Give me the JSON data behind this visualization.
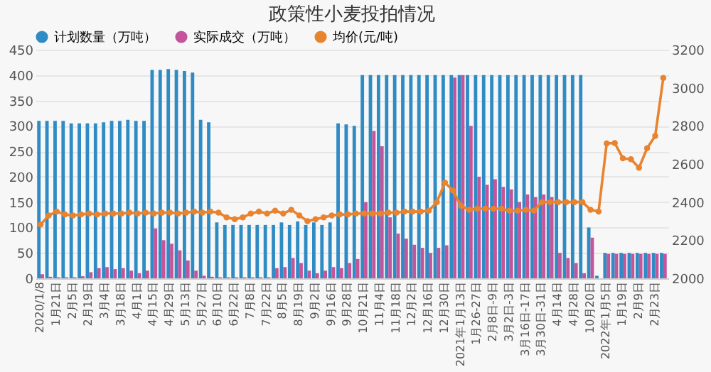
{
  "chart_data": {
    "type": "bar",
    "title": "政策性小麦投拍情况",
    "categories": [
      "2020/1/8",
      null,
      "1月21日",
      null,
      "2月5日",
      null,
      "2月19日",
      null,
      "3月4日",
      null,
      "3月18日",
      null,
      "4月1日",
      null,
      "4月15日",
      null,
      "4月29日",
      null,
      "5月13日",
      null,
      "5月27日",
      null,
      "6月10日",
      null,
      "6月22日",
      null,
      "7月8日",
      null,
      "7月22日",
      null,
      "8月5日",
      null,
      "8月19日",
      null,
      "9月2日",
      null,
      "9月16日",
      null,
      "9月28日",
      null,
      "10月21日",
      null,
      "11月4日",
      null,
      "11月18日",
      null,
      "12月2日",
      null,
      "12月16日",
      null,
      "12月30日",
      null,
      "2021年1月13日",
      null,
      "1月26-27日",
      null,
      "2月8日-9日",
      null,
      "3月2日-3日",
      null,
      "3月16日-17日",
      null,
      "3月30日-31日",
      null,
      "4月14日",
      null,
      "4月28日",
      null,
      "10月20日",
      null,
      "2022年1月5日",
      null,
      "1月19日",
      null,
      "2月9日",
      null,
      "2月23日",
      null
    ],
    "series": [
      {
        "name": "计划数量（万吨）",
        "color": "#2f8bc4",
        "values": [
          310,
          310,
          310,
          310,
          305,
          305,
          305,
          305,
          307,
          310,
          310,
          312,
          310,
          310,
          410,
          410,
          412,
          410,
          408,
          405,
          312,
          307,
          110,
          105,
          105,
          105,
          105,
          105,
          105,
          105,
          110,
          105,
          112,
          105,
          110,
          105,
          110,
          305,
          303,
          300,
          400,
          400,
          400,
          400,
          400,
          400,
          400,
          400,
          400,
          400,
          400,
          400,
          400,
          400,
          400,
          400,
          400,
          400,
          400,
          400,
          400,
          400,
          400,
          400,
          400,
          400,
          400,
          400,
          100,
          5,
          50,
          50,
          50,
          50,
          50,
          50,
          50,
          50
        ]
      },
      {
        "name": "实际成交（万吨）",
        "color": "#c2559b",
        "values": [
          8,
          3,
          2,
          2,
          2,
          4,
          12,
          20,
          22,
          18,
          20,
          15,
          10,
          15,
          98,
          75,
          68,
          55,
          35,
          15,
          5,
          3,
          2,
          2,
          2,
          2,
          2,
          2,
          2,
          20,
          22,
          40,
          30,
          15,
          10,
          15,
          22,
          20,
          30,
          38,
          150,
          290,
          260,
          120,
          88,
          78,
          66,
          60,
          50,
          60,
          65,
          395,
          400,
          300,
          200,
          184,
          195,
          180,
          175,
          150,
          165,
          160,
          165,
          160,
          50,
          40,
          30,
          10,
          80,
          0,
          48,
          48,
          48,
          48,
          48,
          48,
          48,
          48
        ]
      },
      {
        "name": "均价(元/吨)",
        "type": "line",
        "axis": "y2",
        "color": "#e8832f",
        "values": [
          2282,
          2330,
          2350,
          2335,
          2330,
          2335,
          2340,
          2335,
          2340,
          2340,
          2340,
          2345,
          2340,
          2345,
          2340,
          2345,
          2345,
          2340,
          2345,
          2350,
          2345,
          2350,
          2345,
          2320,
          2310,
          2320,
          2340,
          2350,
          2340,
          2355,
          2340,
          2360,
          2330,
          2300,
          2310,
          2320,
          2330,
          2335,
          2335,
          2340,
          2340,
          2340,
          2340,
          2345,
          2345,
          2350,
          2350,
          2350,
          2355,
          2400,
          2502,
          2460,
          2380,
          2360,
          2365,
          2365,
          2365,
          2365,
          2355,
          2355,
          2360,
          2355,
          2400,
          2400,
          2400,
          2400,
          2400,
          2400,
          2360,
          2350,
          2708,
          2710,
          2630,
          2625,
          2580,
          2683,
          2747,
          3052
        ]
      }
    ],
    "ylim": [
      0,
      450
    ],
    "yticks": [
      0,
      50,
      100,
      150,
      200,
      250,
      300,
      350,
      400,
      450
    ],
    "y2lim": [
      2000,
      3200
    ],
    "y2ticks": [
      2000,
      2200,
      2400,
      2600,
      2800,
      3000,
      3200
    ],
    "grid": "y",
    "legend": "top",
    "marker": "circle",
    "line_style": "solid"
  }
}
